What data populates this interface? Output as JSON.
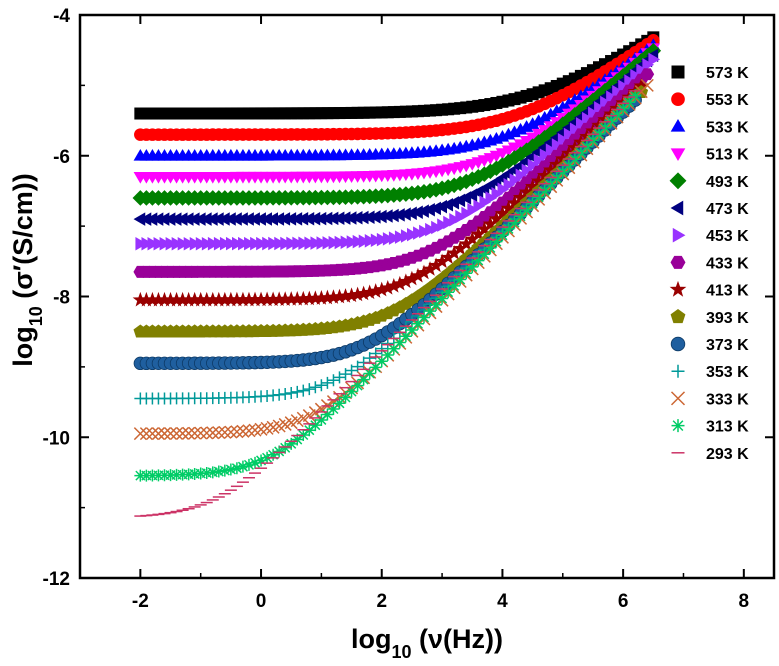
{
  "chart_data": {
    "type": "scatter",
    "title": "",
    "xlabel": {
      "base": "log",
      "sub": "10",
      "rest": " (ν(Hz))"
    },
    "ylabel": {
      "base": "log",
      "sub": "10",
      "rest": " (σ′(S/cm))"
    },
    "xlim": [
      -3,
      8.5
    ],
    "ylim": [
      -12,
      -4
    ],
    "xticks": [
      "-2",
      "0",
      "2",
      "4",
      "6",
      "8"
    ],
    "xtick_values": [
      -2,
      0,
      2,
      4,
      6,
      8
    ],
    "yticks": [
      "-4",
      "-6",
      "-8",
      "-10",
      "-12"
    ],
    "ytick_values": [
      -4,
      -6,
      -8,
      -10,
      -12
    ],
    "legend_position": "right",
    "series": [
      {
        "name": "573 K",
        "marker": "square",
        "color": "#000000",
        "dc": -5.4,
        "fc": 4.6,
        "n": 0.55,
        "xmax": 6.5
      },
      {
        "name": "553 K",
        "marker": "circle",
        "color": "#ff0000",
        "dc": -5.7,
        "fc": 4.3,
        "n": 0.6,
        "xmax": 6.5
      },
      {
        "name": "533 K",
        "marker": "triangle-up",
        "color": "#0000ff",
        "dc": -6.0,
        "fc": 4.1,
        "n": 0.65,
        "xmax": 6.5
      },
      {
        "name": "513 K",
        "marker": "triangle-down",
        "color": "#ff00ff",
        "dc": -6.3,
        "fc": 3.9,
        "n": 0.7,
        "xmax": 6.5
      },
      {
        "name": "493 K",
        "marker": "diamond",
        "color": "#008000",
        "dc": -6.6,
        "fc": 3.6,
        "n": 0.72,
        "xmax": 6.5
      },
      {
        "name": "473 K",
        "marker": "triangle-left",
        "color": "#000080",
        "dc": -6.9,
        "fc": 3.4,
        "n": 0.75,
        "xmax": 6.5
      },
      {
        "name": "453 K",
        "marker": "triangle-right",
        "color": "#9933ff",
        "dc": -7.25,
        "fc": 3.1,
        "n": 0.77,
        "xmax": 6.5
      },
      {
        "name": "433 K",
        "marker": "hexagon",
        "color": "#990099",
        "dc": -7.65,
        "fc": 2.8,
        "n": 0.78,
        "xmax": 6.4
      },
      {
        "name": "413 K",
        "marker": "star",
        "color": "#990000",
        "dc": -8.05,
        "fc": 2.5,
        "n": 0.8,
        "xmax": 6.3
      },
      {
        "name": "393 K",
        "marker": "pentagon",
        "color": "#808000",
        "dc": -8.5,
        "fc": 2.2,
        "n": 0.83,
        "xmax": 6.3
      },
      {
        "name": "373 K",
        "marker": "sphere",
        "color": "#1f5f9f",
        "dc": -8.95,
        "fc": 1.8,
        "n": 0.85,
        "xmax": 6.2
      },
      {
        "name": "353 K",
        "marker": "plus",
        "color": "#009999",
        "dc": -9.45,
        "fc": 1.3,
        "n": 0.88,
        "xmax": 6.2
      },
      {
        "name": "333 K",
        "marker": "cross",
        "color": "#cc6633",
        "dc": -9.95,
        "fc": 0.9,
        "n": 0.9,
        "xmax": 6.4
      },
      {
        "name": "313 K",
        "marker": "asterisk",
        "color": "#00cc66",
        "dc": -10.55,
        "fc": 0.2,
        "n": 0.9,
        "xmax": 6.2
      },
      {
        "name": "293 K",
        "marker": "dash",
        "color": "#cc3366",
        "dc": -11.15,
        "fc": -0.7,
        "n": 0.88,
        "xmax": 6.2
      }
    ],
    "x_start": -2.0,
    "x_step": 0.1,
    "model": "y = dc + log10(1 + 10^(n*(x - fc)))"
  }
}
